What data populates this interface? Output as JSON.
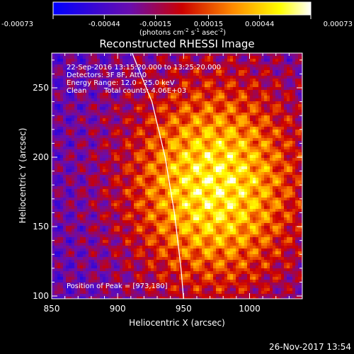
{
  "chart_data": {
    "type": "heatmap",
    "title": "Reconstructed RHESSI Image",
    "xlabel": "Heliocentric X (arcsec)",
    "ylabel": "Heliocentric Y (arcsec)",
    "xlim": [
      850,
      1040
    ],
    "ylim": [
      98,
      275
    ],
    "x_ticks": [
      {
        "value": 850,
        "label": "850"
      },
      {
        "value": 900,
        "label": "900"
      },
      {
        "value": 950,
        "label": "950"
      },
      {
        "value": 1000,
        "label": "1000"
      }
    ],
    "y_ticks": [
      {
        "value": 100,
        "label": "100"
      },
      {
        "value": 150,
        "label": "150"
      },
      {
        "value": 200,
        "label": "200"
      },
      {
        "value": 250,
        "label": "250"
      }
    ],
    "colorbar": {
      "min": -0.00073,
      "max": 0.00073,
      "ticks": [
        {
          "value": -0.00073,
          "label": "-0.00073"
        },
        {
          "value": -0.00044,
          "label": "-0.00044"
        },
        {
          "value": -0.00015,
          "label": "-0.00015"
        },
        {
          "value": 0.00015,
          "label": "0.00015"
        },
        {
          "value": 0.00044,
          "label": "0.00044"
        },
        {
          "value": 0.00073,
          "label": "0.00073"
        }
      ],
      "units_parts": {
        "p1": "(photons cm",
        "s1": "-2",
        "p2": " s",
        "s2": "-1",
        "p3": " asec",
        "s3": "-2",
        "p4": ")"
      }
    },
    "annotations": {
      "time_range": "22-Sep-2016 13:15:20.000 to 13:25:20.000",
      "detectors": "Detectors: 3F 8F, Att 0",
      "energy_range": "Energy Range: 12.0 - 25.0 keV",
      "algorithm": "Clean",
      "total_counts": "Total counts: 4.06E+03",
      "peak_position": "Position of Peak = [973,180]"
    },
    "peak": {
      "x": 973,
      "y": 180
    },
    "limb_arc": [
      {
        "x": 911,
        "y": 275
      },
      {
        "x": 926,
        "y": 240
      },
      {
        "x": 936,
        "y": 200
      },
      {
        "x": 943,
        "y": 160
      },
      {
        "x": 948,
        "y": 120
      },
      {
        "x": 950,
        "y": 98
      }
    ],
    "colors": {
      "background": "#000000",
      "foreground": "#ffffff",
      "colormap": [
        "#0000ff",
        "#6a0dad",
        "#ff0000",
        "#ff8c00",
        "#ffff00",
        "#ffffff"
      ]
    }
  },
  "footer": {
    "timestamp": "26-Nov-2017 13:54"
  }
}
